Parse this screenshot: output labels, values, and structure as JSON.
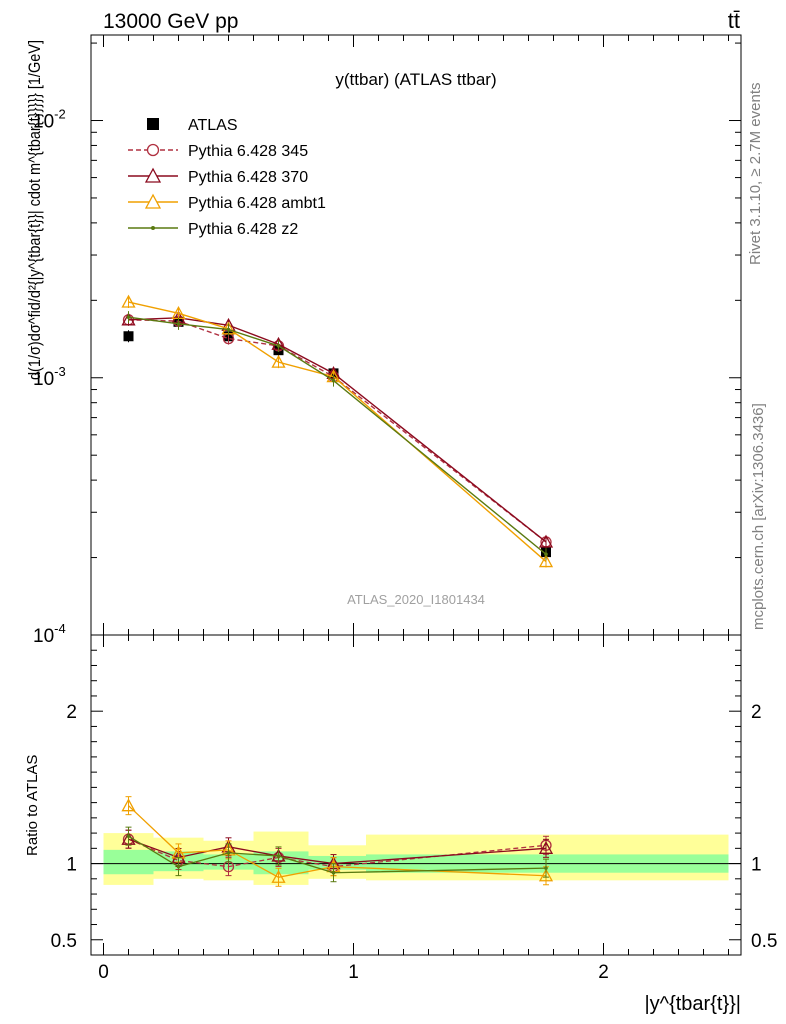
{
  "header": {
    "left": "13000 GeV pp",
    "right": "tt̄"
  },
  "side_labels": {
    "rivet": "Rivet 3.1.10, ≥ 2.7M events",
    "mcplots": "mcplots.cern.ch [arXiv:1306.3436]"
  },
  "watermark": "ATLAS_2020_I1801434",
  "chart_data": [
    {
      "type": "line",
      "title": "y(ttbar) (ATLAS ttbar)",
      "ylabel": "d(1/σ)dσ^fid/d²{|y^{tbar{t}}| cdot m^{tbar{t}}}}} [1/GeV]",
      "yscale": "log",
      "ylim": [
        0.0001,
        0.0215
      ],
      "xlim": [
        -0.05,
        2.55
      ],
      "y_tick_labels": [
        "10^-4",
        "10^-3",
        "10^-2"
      ],
      "grid": false,
      "legend_position": "top-left",
      "x": [
        0.1,
        0.3,
        0.5,
        0.7,
        0.92,
        1.77
      ],
      "series": [
        {
          "name": "ATLAS",
          "color": "#000000",
          "marker": "square",
          "values": [
            0.00145,
            0.00165,
            0.00145,
            0.00128,
            0.00104,
            0.00021
          ]
        },
        {
          "name": "Pythia 6.428 345",
          "color": "#b03040",
          "marker": "circle-open",
          "dash": true,
          "values": [
            0.00168,
            0.00166,
            0.00142,
            0.00133,
            0.00101,
            0.00023
          ]
        },
        {
          "name": "Pythia 6.428 370",
          "color": "#8b0a1e",
          "marker": "triangle-open",
          "values": [
            0.00168,
            0.00171,
            0.0016,
            0.00135,
            0.00104,
            0.00023
          ]
        },
        {
          "name": "Pythia 6.428 ambt1",
          "color": "#f0a000",
          "marker": "triangle-open",
          "values": [
            0.00197,
            0.00178,
            0.00155,
            0.00115,
            0.00101,
            0.000193
          ]
        },
        {
          "name": "Pythia 6.428 z2",
          "color": "#5a7a10",
          "marker": "dot",
          "values": [
            0.00172,
            0.00162,
            0.00154,
            0.00133,
            0.000975,
            0.000206
          ]
        }
      ]
    },
    {
      "type": "line",
      "ylabel": "Ratio to ATLAS",
      "xlabel": "|y^{tbar{t}}|",
      "ylim": [
        0.4,
        2.5
      ],
      "xlim": [
        -0.05,
        2.55
      ],
      "x_tick_labels": [
        "0",
        "1",
        "2"
      ],
      "y_tick_labels": [
        "0.5",
        "1",
        "2"
      ],
      "x": [
        0.1,
        0.3,
        0.5,
        0.7,
        0.92,
        1.77
      ],
      "bands": {
        "edges": [
          0,
          0.2,
          0.4,
          0.6,
          0.82,
          1.05,
          2.5
        ],
        "inner_color": "#99ff99",
        "outer_color": "#ffff99",
        "inner_lo": [
          0.93,
          0.95,
          0.96,
          0.93,
          0.96,
          0.94
        ],
        "inner_hi": [
          1.09,
          1.08,
          1.06,
          1.08,
          1.05,
          1.06
        ],
        "outer_lo": [
          0.86,
          0.9,
          0.89,
          0.86,
          0.9,
          0.89
        ],
        "outer_hi": [
          1.2,
          1.17,
          1.15,
          1.21,
          1.12,
          1.19
        ]
      },
      "series": [
        {
          "name": "Pythia 6.428 345",
          "color": "#b03040",
          "values": [
            1.16,
            1.02,
            0.98,
            1.04,
            0.98,
            1.12
          ]
        },
        {
          "name": "Pythia 6.428 370",
          "color": "#8b0a1e",
          "values": [
            1.16,
            1.04,
            1.11,
            1.05,
            1.0,
            1.1
          ]
        },
        {
          "name": "Pythia 6.428 ambt1",
          "color": "#f0a000",
          "values": [
            1.38,
            1.07,
            1.09,
            0.91,
            0.98,
            0.92
          ]
        },
        {
          "name": "Pythia 6.428 z2",
          "color": "#5a7a10",
          "values": [
            1.18,
            0.98,
            1.07,
            1.05,
            0.94,
            0.97
          ]
        }
      ]
    }
  ]
}
